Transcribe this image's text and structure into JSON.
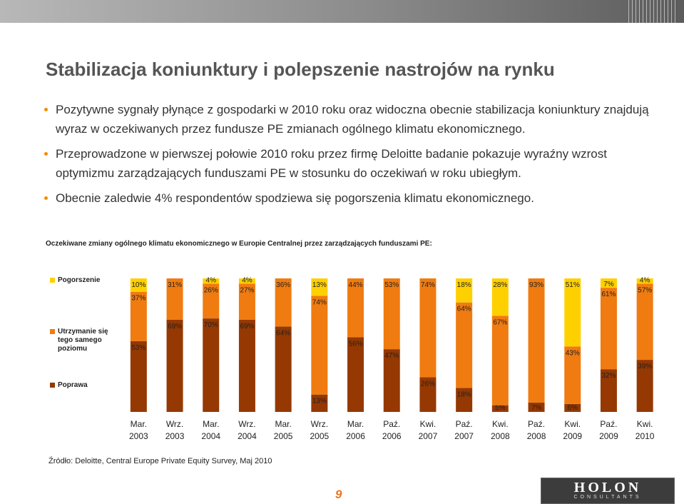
{
  "slide": {
    "title": "Stabilizacja koniunktury i polepszenie nastrojów na rynku",
    "bullets": [
      "Pozytywne sygnały płynące z gospodarki w 2010 roku oraz widoczna obecnie stabilizacja koniunktury znajdują wyraz w oczekiwanych przez fundusze PE zmianach ogólnego klimatu ekonomicznego.",
      "Przeprowadzone w pierwszej połowie 2010 roku przez firmę Deloitte badanie pokazuje wyraźny wzrost optymizmu zarządzających funduszami PE w stosunku do oczekiwań w roku ubiegłym.",
      "Obecnie zaledwie 4% respondentów spodziewa się pogorszenia klimatu ekonomicznego."
    ],
    "chart_caption": "Oczekiwane zmiany ogólnego klimatu ekonomicznego w Europie Centralnej przez zarządzających funduszami PE:",
    "source": "Źródło: Deloitte, Central Europe Private Equity Survey, Maj 2010",
    "page_number": "9",
    "logo_main": "HOLON",
    "logo_sub": "CONSULTANTS"
  },
  "chart_data": {
    "type": "bar",
    "stacked": true,
    "percent_scale": true,
    "categories": [
      [
        "Mar.",
        "2003"
      ],
      [
        "Wrz.",
        "2003"
      ],
      [
        "Mar.",
        "2004"
      ],
      [
        "Wrz.",
        "2004"
      ],
      [
        "Mar.",
        "2005"
      ],
      [
        "Wrz.",
        "2005"
      ],
      [
        "Mar.",
        "2006"
      ],
      [
        "Paź.",
        "2006"
      ],
      [
        "Kwi.",
        "2007"
      ],
      [
        "Paź.",
        "2007"
      ],
      [
        "Kwi.",
        "2008"
      ],
      [
        "Paź.",
        "2008"
      ],
      [
        "Kwi.",
        "2009"
      ],
      [
        "Paź.",
        "2009"
      ],
      [
        "Kwi.",
        "2010"
      ]
    ],
    "series": [
      {
        "name": "Poprawa",
        "color": "#953802",
        "values": [
          53,
          69,
          70,
          69,
          64,
          13,
          56,
          47,
          26,
          18,
          5,
          7,
          6,
          32,
          39
        ]
      },
      {
        "name": "Utrzymanie się tego samego poziomu",
        "color": "#f07b10",
        "values": [
          37,
          31,
          26,
          27,
          36,
          74,
          44,
          53,
          74,
          64,
          67,
          93,
          43,
          61,
          57
        ]
      },
      {
        "name": "Pogorszenie",
        "color": "#ffd000",
        "values": [
          10,
          0,
          4,
          4,
          0,
          13,
          0,
          0,
          0,
          18,
          28,
          0,
          51,
          7,
          4
        ]
      }
    ],
    "labels": {
      "Poprawa": [
        "53%",
        "69%",
        "70%",
        "69%",
        "64%",
        "13%",
        "56%",
        "47%",
        "26%",
        "18%",
        "5%",
        "7%",
        "6%",
        "32%",
        "39%"
      ],
      "Utrzymanie się tego samego poziomu": [
        "37%",
        "31%",
        "26%",
        "27%",
        "36%",
        "74%",
        "44%",
        "53%",
        "74%",
        "64%",
        "67%",
        "93%",
        "43%",
        "61%",
        "57%"
      ],
      "Pogorszenie": [
        "10%",
        "",
        "4%",
        "4%",
        "",
        "13%",
        "",
        "",
        "",
        "18%",
        "28%",
        "",
        "51%",
        "7%",
        "4%"
      ]
    },
    "legend": {
      "placement": "left",
      "items": [
        {
          "key": "Pogorszenie",
          "lines": [
            "Pogorszenie"
          ],
          "color": "#ffd000"
        },
        {
          "key": "Utrzymanie się tego samego poziomu",
          "lines": [
            "Utrzymanie się",
            "tego samego",
            "poziomu"
          ],
          "color": "#f07b10"
        },
        {
          "key": "Poprawa",
          "lines": [
            "Poprawa"
          ],
          "color": "#953802"
        }
      ]
    },
    "title": "",
    "xlabel": "",
    "ylabel": "",
    "ylim": [
      0,
      100
    ],
    "grid": false
  }
}
